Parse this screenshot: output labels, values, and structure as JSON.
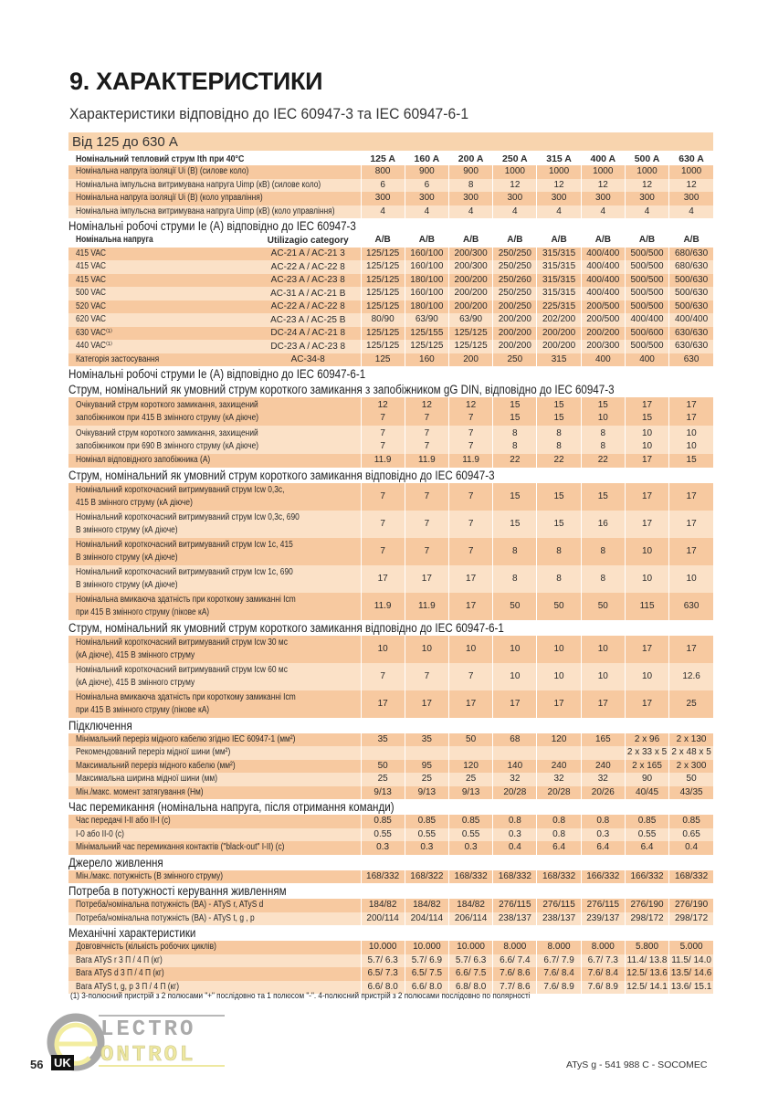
{
  "page": {
    "title": "9. ХАРАКТЕРИСТИКИ",
    "subtitle": "Характеристики відповідно до IEC 60947-3 та IEC 60947-6-1",
    "band": "Від 125 до 630 A",
    "footnote": "(1) 3-полюсний пристрій з 2 полюсами \"+\" послідовно та 1 полюсом \"-\". 4-полюсний пристрій з 2 полюсами послідовно по полярності",
    "page_number": "56",
    "lang": "UK",
    "doc_ref": "ATyS g - 541 988 C - SOCOMEC",
    "logo_text": "ELECTRO CONTROL",
    "colors": {
      "band": "#f8d4ae",
      "row_dark": "#f7c9a0",
      "row_light": "#fbe1c7"
    }
  },
  "table": {
    "header": {
      "label": "Номінальний тепловий струм Ith при 40°C",
      "columns": [
        "125 A",
        "160 A",
        "200 A",
        "250 A",
        "315 A",
        "400 A",
        "500 A",
        "630 A"
      ]
    },
    "sections": [
      {
        "title": "",
        "rows": [
          {
            "label": "Номінальна напруга ізоляції Ui (В) (силове коло)",
            "values": [
              "800",
              "900",
              "900",
              "1000",
              "1000",
              "1000",
              "1000",
              "1000"
            ]
          },
          {
            "label": "Номінальна імпульсна витримувана напруга Uimp (кВ) (силове коло)",
            "values": [
              "6",
              "6",
              "8",
              "12",
              "12",
              "12",
              "12",
              "12"
            ]
          },
          {
            "label": "Номінальна напруга ізоляції Ui (В) (коло управління)",
            "values": [
              "300",
              "300",
              "300",
              "300",
              "300",
              "300",
              "300",
              "300"
            ]
          },
          {
            "label": "Номінальна імпульсна витримувана напруга Uimp (кВ) (коло управління)",
            "values": [
              "4",
              "4",
              "4",
              "4",
              "4",
              "4",
              "4",
              "4"
            ]
          }
        ]
      },
      {
        "title": "Номінальні робочі струми Ie (A) відповідно до IEC 60947-3",
        "subheader": {
          "label": "Номінальна напруга",
          "category": "Utilizagio category",
          "values": [
            "A/B",
            "A/B",
            "A/B",
            "A/B",
            "A/B",
            "A/B",
            "A/B",
            "A/B"
          ]
        },
        "rows": [
          {
            "label": "415 VAC",
            "category": "AC-21 A / AC-21 3",
            "values": [
              "125/125",
              "160/100",
              "200/300",
              "250/250",
              "315/315",
              "400/400",
              "500/500",
              "680/630"
            ]
          },
          {
            "label": "415 VAC",
            "category": "AC-22 A / AC-22 8",
            "values": [
              "125/125",
              "160/100",
              "200/300",
              "250/250",
              "315/315",
              "400/400",
              "500/500",
              "680/630"
            ]
          },
          {
            "label": "415 VAC",
            "category": "AC-23 A / AC-23 8",
            "values": [
              "125/125",
              "180/100",
              "200/200",
              "250/260",
              "315/315",
              "400/400",
              "500/500",
              "500/630"
            ]
          },
          {
            "label": "500 VAC",
            "category": "AC-31 A / AC-21 B",
            "values": [
              "125/125",
              "160/100",
              "200/200",
              "250/250",
              "315/315",
              "400/400",
              "500/500",
              "500/630"
            ]
          },
          {
            "label": "520 VAC",
            "category": "AC-22 A / AC-22 8",
            "values": [
              "125/125",
              "180/100",
              "200/200",
              "200/250",
              "225/315",
              "200/500",
              "500/500",
              "500/630"
            ]
          },
          {
            "label": "620 VAC",
            "category": "AC-23 A / AC-25 B",
            "values": [
              "80/90",
              "63/90",
              "63/90",
              "200/200",
              "202/200",
              "200/500",
              "400/400",
              "400/400"
            ]
          },
          {
            "label": "630 VAC⁽¹⁾",
            "category": "DC-24 A / AC-21 8",
            "values": [
              "125/125",
              "125/155",
              "125/125",
              "200/200",
              "200/200",
              "200/200",
              "500/600",
              "630/630"
            ]
          },
          {
            "label": "440 VAC⁽¹⁾",
            "category": "DC-23 A / AC-23 8",
            "values": [
              "125/125",
              "125/125",
              "125/125",
              "200/200",
              "200/200",
              "200/300",
              "500/500",
              "630/630"
            ]
          },
          {
            "label": "Категорія застосування",
            "category": "AC-34-8",
            "values": [
              "125",
              "160",
              "200",
              "250",
              "315",
              "400",
              "400",
              "630"
            ]
          }
        ]
      },
      {
        "title": "Номінальні робочі струми Ie (A) відповідно до IEC 60947-6-1",
        "rows": []
      },
      {
        "title": "Струм, номінальний як умовний струм короткого замикання з запобіжником gG DIN, відповідно до IEC 60947-3",
        "rows": [
          {
            "label": "Очікуваний струм короткого замикання, захищений\nзапобіжником при 415 В змінного струму (кА діюче)",
            "values": [
              "12\n7",
              "12\n7",
              "12\n7",
              "15\n15",
              "15\n15",
              "15\n10",
              "17\n15",
              "17\n17"
            ]
          },
          {
            "label": "Очікуваний струм короткого замикання, захищений\nзапобіжником при 690 В змінного струму (кА діюче)",
            "values": [
              "7\n7",
              "7\n7",
              "7\n7",
              "8\n8",
              "8\n8",
              "8\n8",
              "10\n10",
              "10\n10"
            ]
          },
          {
            "label": "Номінал відповідного запобіжника (A)",
            "values": [
              "11.9",
              "11.9",
              "11.9",
              "22",
              "22",
              "22",
              "17",
              "15"
            ]
          }
        ]
      },
      {
        "title": "Струм, номінальний як умовний струм короткого замикання відповідно до IEC 60947-3",
        "rows": [
          {
            "label": "Номінальний короткочасний витримуваний струм Icw 0,3с,\n415 В змінного струму (кА діюче)",
            "values": [
              "7",
              "7",
              "7",
              "15",
              "15",
              "15",
              "17",
              "17"
            ]
          },
          {
            "label": "Номінальний короткочасний витримуваний струм Icw 0,3с, 690\nВ змінного струму (кА діюче)",
            "values": [
              "7",
              "7",
              "7",
              "15",
              "15",
              "16",
              "17",
              "17"
            ]
          },
          {
            "label": "Номінальний короткочасний витримуваний струм Icw 1с, 415\nВ змінного струму (кА діюче)",
            "values": [
              "7",
              "7",
              "7",
              "8",
              "8",
              "8",
              "10",
              "17"
            ]
          },
          {
            "label": "Номінальний короткочасний витримуваний струм Icw 1с, 690\nВ змінного струму (кА діюче)",
            "values": [
              "17",
              "17",
              "17",
              "8",
              "8",
              "8",
              "10",
              "10"
            ]
          },
          {
            "label": "Номінальна вмикаюча здатність при короткому замиканні Icm\nпри 415 В змінного струму (пікове кА)",
            "values": [
              "11.9",
              "11.9",
              "17",
              "50",
              "50",
              "50",
              "115",
              "630"
            ]
          }
        ]
      },
      {
        "title": "Струм, номінальний як умовний струм короткого замикання відповідно до IEC 60947-6-1",
        "rows": [
          {
            "label": "Номінальний короткочасний витримуваний струм Icw 30 мс\n(кА діюче), 415 В змінного струму",
            "values": [
              "10",
              "10",
              "10",
              "10",
              "10",
              "10",
              "17",
              "17"
            ]
          },
          {
            "label": "Номінальний короткочасний витримуваний струм Icw 60 мс\n(кА діюче), 415 В змінного струму",
            "values": [
              "7",
              "7",
              "7",
              "10",
              "10",
              "10",
              "10",
              "12.6"
            ]
          },
          {
            "label": "Номінальна вмикаюча здатність при короткому замиканні Icm\nпри 415 В змінного струму (пікове кА)",
            "values": [
              "17",
              "17",
              "17",
              "17",
              "17",
              "17",
              "17",
              "25"
            ]
          }
        ]
      },
      {
        "title": "Підключення",
        "rows": [
          {
            "label": "Мінімальний переріз мідного кабелю згідно IEC 60947-1 (мм²)",
            "values": [
              "35",
              "35",
              "50",
              "68",
              "120",
              "165",
              "2 x 96",
              "2 x 130"
            ]
          },
          {
            "label": "Рекомендований переріз мідної шини (мм²)",
            "values": [
              "",
              "",
              "",
              "",
              "",
              "",
              "2 x 33 x 5",
              "2 x 48 x 5"
            ]
          },
          {
            "label": "Максимальний переріз мідного кабелю (мм²)",
            "values": [
              "50",
              "95",
              "120",
              "140",
              "240",
              "240",
              "2 x 165",
              "2 x 300"
            ]
          },
          {
            "label": "Максимальна ширина мідної шини (мм)",
            "values": [
              "25",
              "25",
              "25",
              "32",
              "32",
              "32",
              "90",
              "50"
            ]
          },
          {
            "label": "Мін./макс. момент затягування (Нм)",
            "values": [
              "9/13",
              "9/13",
              "9/13",
              "20/28",
              "20/28",
              "20/26",
              "40/45",
              "43/35"
            ]
          }
        ]
      },
      {
        "title": "Час перемикання (номінальна напруга, після отримання команди)",
        "rows": [
          {
            "label": "Час передачі I-II або II-I (с)",
            "values": [
              "0.85",
              "0.85",
              "0.85",
              "0.8",
              "0.8",
              "0.8",
              "0.85",
              "0.85"
            ]
          },
          {
            "label": "I-0 або II-0 (с)",
            "values": [
              "0.55",
              "0.55",
              "0.55",
              "0.3",
              "0.8",
              "0.3",
              "0.55",
              "0.65"
            ]
          },
          {
            "label": "Мінімальний час перемикання контактів (\"black-out\" I-II) (с)",
            "values": [
              "0.3",
              "0.3",
              "0.3",
              "0.4",
              "6.4",
              "6.4",
              "6.4",
              "0.4"
            ]
          }
        ]
      },
      {
        "title": "Джерело живлення",
        "rows": [
          {
            "label": "Мін./макс. потужність (В змінного струму)",
            "values": [
              "168/332",
              "168/322",
              "168/332",
              "168/332",
              "168/332",
              "166/332",
              "166/332",
              "168/332"
            ]
          }
        ]
      },
      {
        "title": "Потреба в потужності керування живленням",
        "rows": [
          {
            "label": "Потреба/номінальна потужність (ВА) - ATyS r, ATyS d",
            "values": [
              "184/82",
              "184/82",
              "184/82",
              "276/115",
              "276/115",
              "276/115",
              "276/190",
              "276/190"
            ]
          },
          {
            "label": "Потреба/номінальна потужність (ВА) - ATyS t, g , p",
            "values": [
              "200/114",
              "204/114",
              "206/114",
              "238/137",
              "238/137",
              "239/137",
              "298/172",
              "298/172"
            ]
          }
        ]
      },
      {
        "title": "Механічні характеристики",
        "rows": [
          {
            "label": "Довговічність (кількість робочих циклів)",
            "values": [
              "10.000",
              "10.000",
              "10.000",
              "8.000",
              "8.000",
              "8.000",
              "5.800",
              "5.000"
            ]
          },
          {
            "label": "Вага ATyS r 3 П / 4 П (кг)",
            "values": [
              "5.7/ 6.3",
              "5.7/ 6.9",
              "5.7/ 6.3",
              "6.6/ 7.4",
              "6.7/ 7.9",
              "6.7/ 7.3",
              "11.4/ 13.8",
              "11.5/ 14.0"
            ]
          },
          {
            "label": "Вага ATyS d 3 П / 4 П (кг)",
            "values": [
              "6.5/ 7.3",
              "6.5/ 7.5",
              "6.6/ 7.5",
              "7.6/ 8.6",
              "7.6/ 8.4",
              "7.6/ 8.4",
              "12.5/ 13.6",
              "13.5/ 14.6"
            ]
          },
          {
            "label": "Вага ATyS t, g, p 3 П / 4 П (кг)",
            "values": [
              "6.6/ 8.0",
              "6.6/ 8.0",
              "6.8/ 8.0",
              "7.7/ 8.6",
              "7.6/ 8.9",
              "7.6/ 8.9",
              "12.5/ 14.1",
              "13.6/ 15.1"
            ]
          }
        ]
      }
    ]
  }
}
